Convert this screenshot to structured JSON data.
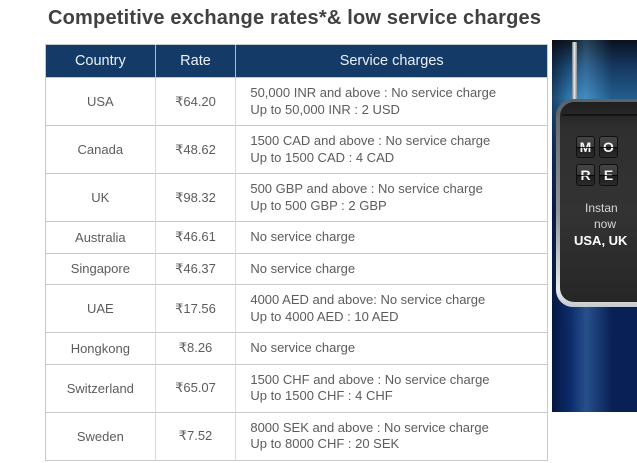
{
  "page": {
    "title": "Competitive exchange rates*& low service charges"
  },
  "table": {
    "columns": [
      "Country",
      "Rate",
      "Service charges"
    ],
    "rows": [
      {
        "country": "USA",
        "rate": "₹64.20",
        "charges": [
          "50,000 INR and above : No service charge",
          "Up to 50,000 INR : 2 USD"
        ]
      },
      {
        "country": "Canada",
        "rate": "₹48.62",
        "charges": [
          "1500 CAD and above : No service charge",
          "Up to 1500 CAD : 4 CAD"
        ]
      },
      {
        "country": "UK",
        "rate": "₹98.32",
        "charges": [
          "500 GBP and above : No service charge",
          "Up to 500 GBP : 2 GBP"
        ]
      },
      {
        "country": "Australia",
        "rate": "₹46.61",
        "charges": [
          "No service charge"
        ]
      },
      {
        "country": "Singapore",
        "rate": "₹46.37",
        "charges": [
          "No service charge"
        ]
      },
      {
        "country": "UAE",
        "rate": "₹17.56",
        "charges": [
          "4000 AED and above: No service charge",
          "Up to 4000 AED : 10 AED"
        ]
      },
      {
        "country": "Hongkong",
        "rate": "₹8.26",
        "charges": [
          "No service charge"
        ]
      },
      {
        "country": "Switzerland",
        "rate": "₹65.07",
        "charges": [
          "1500 CHF and above : No service charge",
          "Up to 1500 CHF : 4 CHF"
        ]
      },
      {
        "country": "Sweden",
        "rate": "₹7.52",
        "charges": [
          "8000 SEK and above : No service charge",
          "Up to 8000 CHF : 20 SEK"
        ]
      }
    ]
  },
  "banner": {
    "tiles": [
      [
        "M",
        "O"
      ],
      [
        "R",
        "E"
      ]
    ],
    "lines": [
      {
        "text": "Instan",
        "bold": false
      },
      {
        "text": "now",
        "bold": false
      },
      {
        "text": "USA, UK",
        "bold": true
      }
    ]
  },
  "colors": {
    "title_color": "#414141",
    "header_bg": "#143a68",
    "header_text": "#eaf1f8",
    "cell_text": "#5c5c5c",
    "border": "#c9c9c9",
    "banner_blue": "#0c2b6b"
  }
}
